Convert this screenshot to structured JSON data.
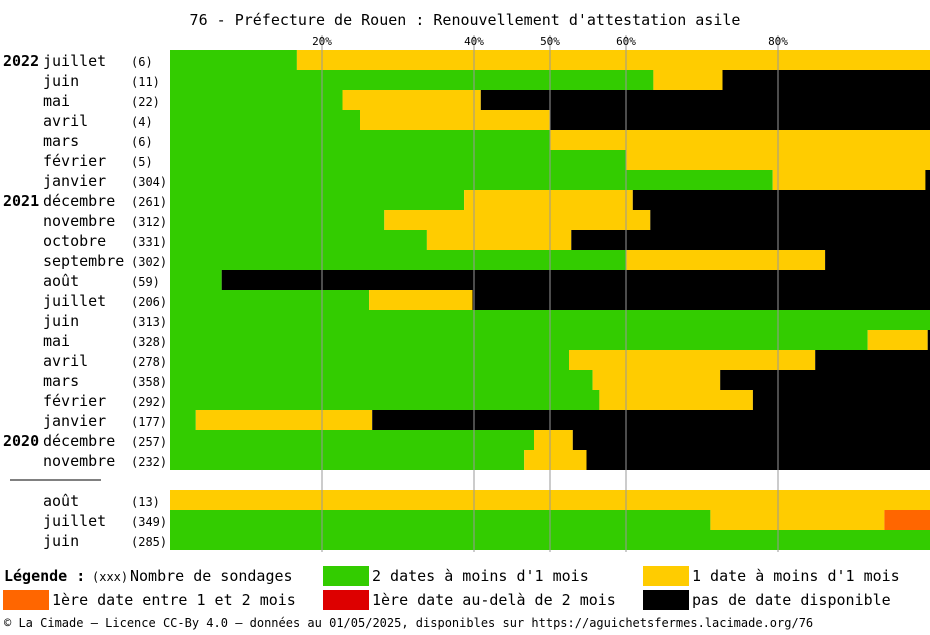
{
  "chart_data": {
    "type": "bar",
    "orientation": "horizontal",
    "stacked": true,
    "title": "76 - Préfecture de Rouen : Renouvellement d'attestation asile",
    "x_ticks": [
      "20%",
      "40%",
      "50%",
      "60%",
      "80%"
    ],
    "xlim": [
      0,
      100
    ],
    "grid": "vertical lines at tick values",
    "series_colors": {
      "green": "#33cc00",
      "yellow": "#ffcc00",
      "orange": "#ff6600",
      "red": "#dd0000",
      "black": "#000000"
    },
    "groups": [
      {
        "rows": [
          {
            "year": "2022",
            "month": "juillet",
            "count": "(6)",
            "green": 16.7,
            "yellow": 83.3,
            "orange": 0,
            "red": 0,
            "black": 0
          },
          {
            "year": "",
            "month": "juin",
            "count": "(11)",
            "green": 63.6,
            "yellow": 9.1,
            "orange": 0,
            "red": 0,
            "black": 27.3
          },
          {
            "year": "",
            "month": "mai",
            "count": "(22)",
            "green": 22.7,
            "yellow": 18.2,
            "orange": 0,
            "red": 0,
            "black": 59.1
          },
          {
            "year": "",
            "month": "avril",
            "count": "(4)",
            "green": 25,
            "yellow": 25,
            "orange": 0,
            "red": 0,
            "black": 50
          },
          {
            "year": "",
            "month": "mars",
            "count": "(6)",
            "green": 50,
            "yellow": 50,
            "orange": 0,
            "red": 0,
            "black": 0
          },
          {
            "year": "",
            "month": "février",
            "count": "(5)",
            "green": 60,
            "yellow": 40,
            "orange": 0,
            "red": 0,
            "black": 0
          },
          {
            "year": "",
            "month": "janvier",
            "count": "(304)",
            "green": 79.3,
            "yellow": 20.1,
            "orange": 0,
            "red": 0,
            "black": 0.6
          },
          {
            "year": "2021",
            "month": "décembre",
            "count": "(261)",
            "green": 38.7,
            "yellow": 22.2,
            "orange": 0,
            "red": 0,
            "black": 39.1
          },
          {
            "year": "",
            "month": "novembre",
            "count": "(312)",
            "green": 28.2,
            "yellow": 35,
            "orange": 0,
            "red": 0,
            "black": 36.8
          },
          {
            "year": "",
            "month": "octobre",
            "count": "(331)",
            "green": 33.8,
            "yellow": 19,
            "orange": 0,
            "red": 0,
            "black": 47.2
          },
          {
            "year": "",
            "month": "septembre",
            "count": "(302)",
            "green": 60,
            "yellow": 26.2,
            "orange": 0,
            "red": 0,
            "black": 13.8
          },
          {
            "year": "",
            "month": "août",
            "count": "(59)",
            "green": 6.8,
            "yellow": 0,
            "orange": 0,
            "red": 0,
            "black": 93.2
          },
          {
            "year": "",
            "month": "juillet",
            "count": "(206)",
            "green": 26.2,
            "yellow": 13.6,
            "orange": 0,
            "red": 0,
            "black": 60.2
          },
          {
            "year": "",
            "month": "juin",
            "count": "(313)",
            "green": 100,
            "yellow": 0,
            "orange": 0,
            "red": 0,
            "black": 0
          },
          {
            "year": "",
            "month": "mai",
            "count": "(328)",
            "green": 91.8,
            "yellow": 7.9,
            "orange": 0,
            "red": 0,
            "black": 0.3
          },
          {
            "year": "",
            "month": "avril",
            "count": "(278)",
            "green": 52.5,
            "yellow": 32.4,
            "orange": 0,
            "red": 0,
            "black": 15.1
          },
          {
            "year": "",
            "month": "mars",
            "count": "(358)",
            "green": 55.6,
            "yellow": 16.8,
            "orange": 0,
            "red": 0,
            "black": 27.6
          },
          {
            "year": "",
            "month": "février",
            "count": "(292)",
            "green": 56.5,
            "yellow": 20.2,
            "orange": 0,
            "red": 0,
            "black": 23.3
          },
          {
            "year": "",
            "month": "janvier",
            "count": "(177)",
            "green": 3.4,
            "yellow": 23.2,
            "orange": 0,
            "red": 0,
            "black": 73.4
          },
          {
            "year": "2020",
            "month": "décembre",
            "count": "(257)",
            "green": 47.9,
            "yellow": 5.1,
            "orange": 0,
            "red": 0,
            "black": 47
          },
          {
            "year": "",
            "month": "novembre",
            "count": "(232)",
            "green": 46.6,
            "yellow": 8.2,
            "orange": 0,
            "red": 0,
            "black": 45.2
          }
        ]
      },
      {
        "rows": [
          {
            "year": "",
            "month": "août",
            "count": "(13)",
            "green": 0,
            "yellow": 100,
            "orange": 0,
            "red": 0,
            "black": 0
          },
          {
            "year": "",
            "month": "juillet",
            "count": "(349)",
            "green": 71.1,
            "yellow": 22.9,
            "orange": 6,
            "red": 0,
            "black": 0
          },
          {
            "year": "",
            "month": "juin",
            "count": "(285)",
            "green": 100,
            "yellow": 0,
            "orange": 0,
            "red": 0,
            "black": 0
          }
        ]
      }
    ]
  },
  "legend": {
    "title": "Légende :",
    "count_hint": "(xxx)",
    "count_label": "Nombre de sondages",
    "items": [
      {
        "color": "#33cc00",
        "label": "2 dates à moins d'1 mois"
      },
      {
        "color": "#ffcc00",
        "label": "1 date à moins d'1 mois"
      },
      {
        "color": "#ff6600",
        "label": "1ère date entre 1 et 2 mois"
      },
      {
        "color": "#dd0000",
        "label": "1ère date au-delà de 2 mois"
      },
      {
        "color": "#000000",
        "label": "pas de date disponible"
      }
    ]
  },
  "footer": "© La Cimade — Licence CC-By 4.0 — données au 01/05/2025, disponibles sur https://aguichetsfermes.lacimade.org/76"
}
